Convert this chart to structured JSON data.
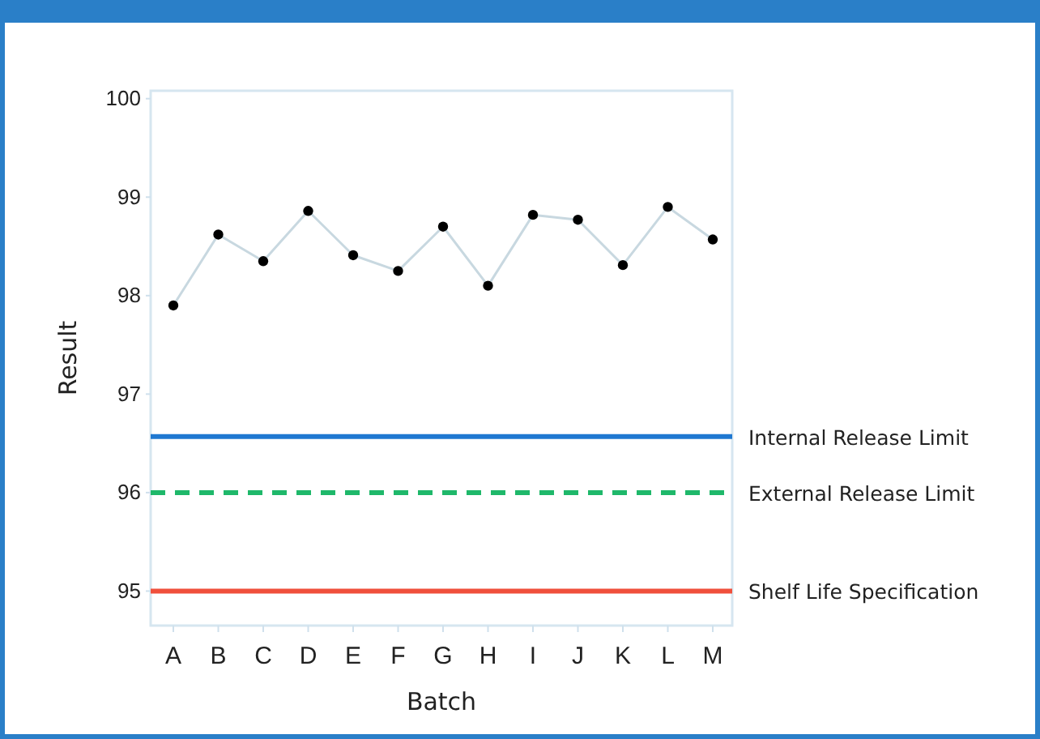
{
  "chart_data": {
    "type": "line",
    "xlabel": "Batch",
    "ylabel": "Result",
    "categories": [
      "A",
      "B",
      "C",
      "D",
      "E",
      "F",
      "G",
      "H",
      "I",
      "J",
      "K",
      "L",
      "M"
    ],
    "series": [
      {
        "color": "#000000",
        "values": [
          97.9,
          98.62,
          98.35,
          98.86,
          98.41,
          98.25,
          98.7,
          98.1,
          98.82,
          98.77,
          98.31,
          98.9,
          98.57
        ]
      }
    ],
    "ylim": [
      94.65,
      100.08
    ],
    "yticks": [
      95,
      96,
      97,
      98,
      99,
      100
    ],
    "grid": false,
    "marker": "circle",
    "line_style": "solid",
    "ref_lines": [
      {
        "axis": "y",
        "value": 96.57,
        "label": "Internal Release Limit",
        "color": "#1f78d1",
        "line_style": "solid"
      },
      {
        "axis": "y",
        "value": 96.0,
        "label": "External Release Limit",
        "color": "#1fb86a",
        "line_style": "dashed"
      },
      {
        "axis": "y",
        "value": 95.0,
        "label": "Shelf Life Specification",
        "color": "#f0503c",
        "line_style": "solid"
      }
    ]
  }
}
